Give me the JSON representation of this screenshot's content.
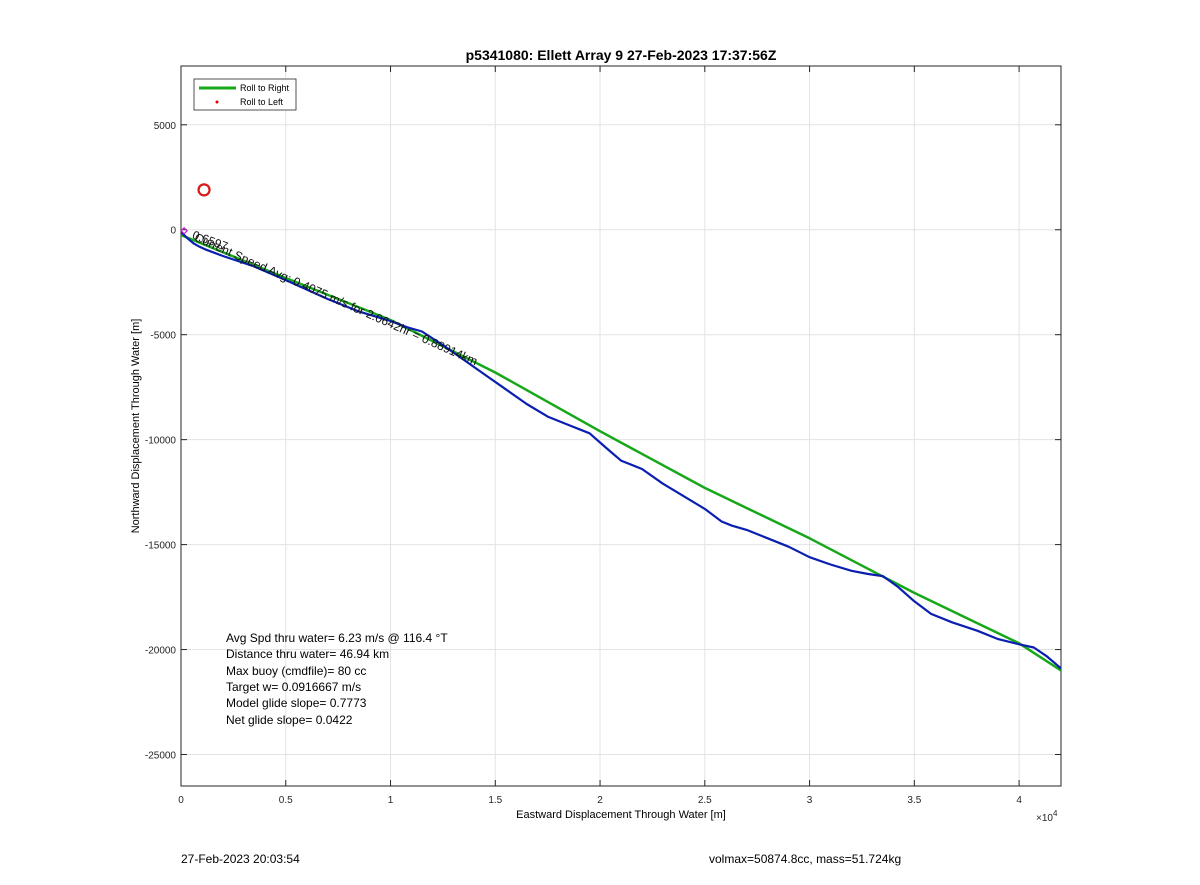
{
  "chart_data": {
    "type": "line",
    "title": "p5341080: Ellett Array 9 27-Feb-2023 17:37:56Z",
    "xlabel": "Eastward Displacement Through Water [m]",
    "ylabel": "Northward Displacement Through Water [m]",
    "xlim": [
      0,
      42000
    ],
    "ylim": [
      -26500,
      7800
    ],
    "x_tick_values": [
      0,
      5000,
      10000,
      15000,
      20000,
      25000,
      30000,
      35000,
      40000
    ],
    "x_tick_labels": [
      "0",
      "0.5",
      "1",
      "1.5",
      "2",
      "2.5",
      "3",
      "3.5",
      "4"
    ],
    "x_exponent_label": "×10",
    "x_exponent_power": "4",
    "y_tick_values": [
      5000,
      0,
      -5000,
      -10000,
      -15000,
      -20000,
      -25000
    ],
    "y_tick_labels": [
      "5000",
      "0",
      "-5000",
      "-10000",
      "-15000",
      "-20000",
      "-25000"
    ],
    "grid": true,
    "legend_position": "top-left",
    "legend": [
      {
        "label": "Roll to Right",
        "color": "#17a81a",
        "style": "line"
      },
      {
        "label": "Roll to Left",
        "color": "#e00000",
        "style": "dot"
      }
    ],
    "series": [
      {
        "name": "Roll to Right",
        "color": "#17a81a",
        "x": [
          0,
          5000,
          10000,
          15000,
          20000,
          25000,
          30000,
          35000,
          40000,
          42000
        ],
        "y": [
          -250,
          -2300,
          -4300,
          -6800,
          -9600,
          -12300,
          -14700,
          -17300,
          -19700,
          -21000
        ]
      },
      {
        "name": "",
        "color": "#0a1fb0",
        "x": [
          0,
          300,
          600,
          900,
          1200,
          2000,
          3500,
          5000,
          7000,
          8500,
          10000,
          10800,
          11500,
          12500,
          13500,
          14500,
          15500,
          16500,
          17500,
          18500,
          19500,
          20300,
          21000,
          22000,
          23000,
          24000,
          25000,
          25800,
          26300,
          27000,
          28000,
          29000,
          30000,
          31000,
          32000,
          32800,
          33500,
          34200,
          35000,
          35800,
          36800,
          38000,
          39000,
          40000,
          40700,
          41300,
          42000
        ],
        "y": [
          -100,
          -400,
          -650,
          -820,
          -950,
          -1250,
          -1750,
          -2400,
          -3300,
          -3900,
          -4350,
          -4650,
          -4850,
          -5500,
          -6200,
          -6900,
          -7600,
          -8300,
          -8900,
          -9300,
          -9700,
          -10400,
          -11000,
          -11400,
          -12100,
          -12700,
          -13300,
          -13900,
          -14100,
          -14300,
          -14700,
          -15100,
          -15600,
          -15950,
          -16250,
          -16400,
          -16500,
          -17000,
          -17700,
          -18300,
          -18700,
          -19100,
          -19500,
          -19750,
          -19900,
          -20300,
          -20900
        ]
      }
    ],
    "markers": [
      {
        "type": "circle",
        "x": 1100,
        "y": 1900,
        "color": "#d61a1a"
      },
      {
        "type": "diamond",
        "x": 150,
        "y": -50,
        "color": "#c81dd0"
      }
    ],
    "annotations": [
      {
        "text": "Current Speed Avg: 0.4075 m/s for 2.0642hr = 0.88914km",
        "x": 600,
        "y": -500,
        "rotation": 24
      },
      {
        "text": "0.6597",
        "x": 500,
        "y": -400,
        "rotation": 20
      }
    ],
    "stats": [
      "Avg Spd thru water=  6.23 m/s @ 116.4 °T",
      "Distance thru water= 46.94 km",
      "Max buoy (cmdfile)= 80 cc",
      "Target w= 0.0916667 m/s",
      "Model glide slope= 0.7773",
      "Net glide slope= 0.0422"
    ]
  },
  "footer": {
    "left": "27-Feb-2023 20:03:54",
    "right": "volmax=50874.8cc, mass=51.724kg"
  }
}
